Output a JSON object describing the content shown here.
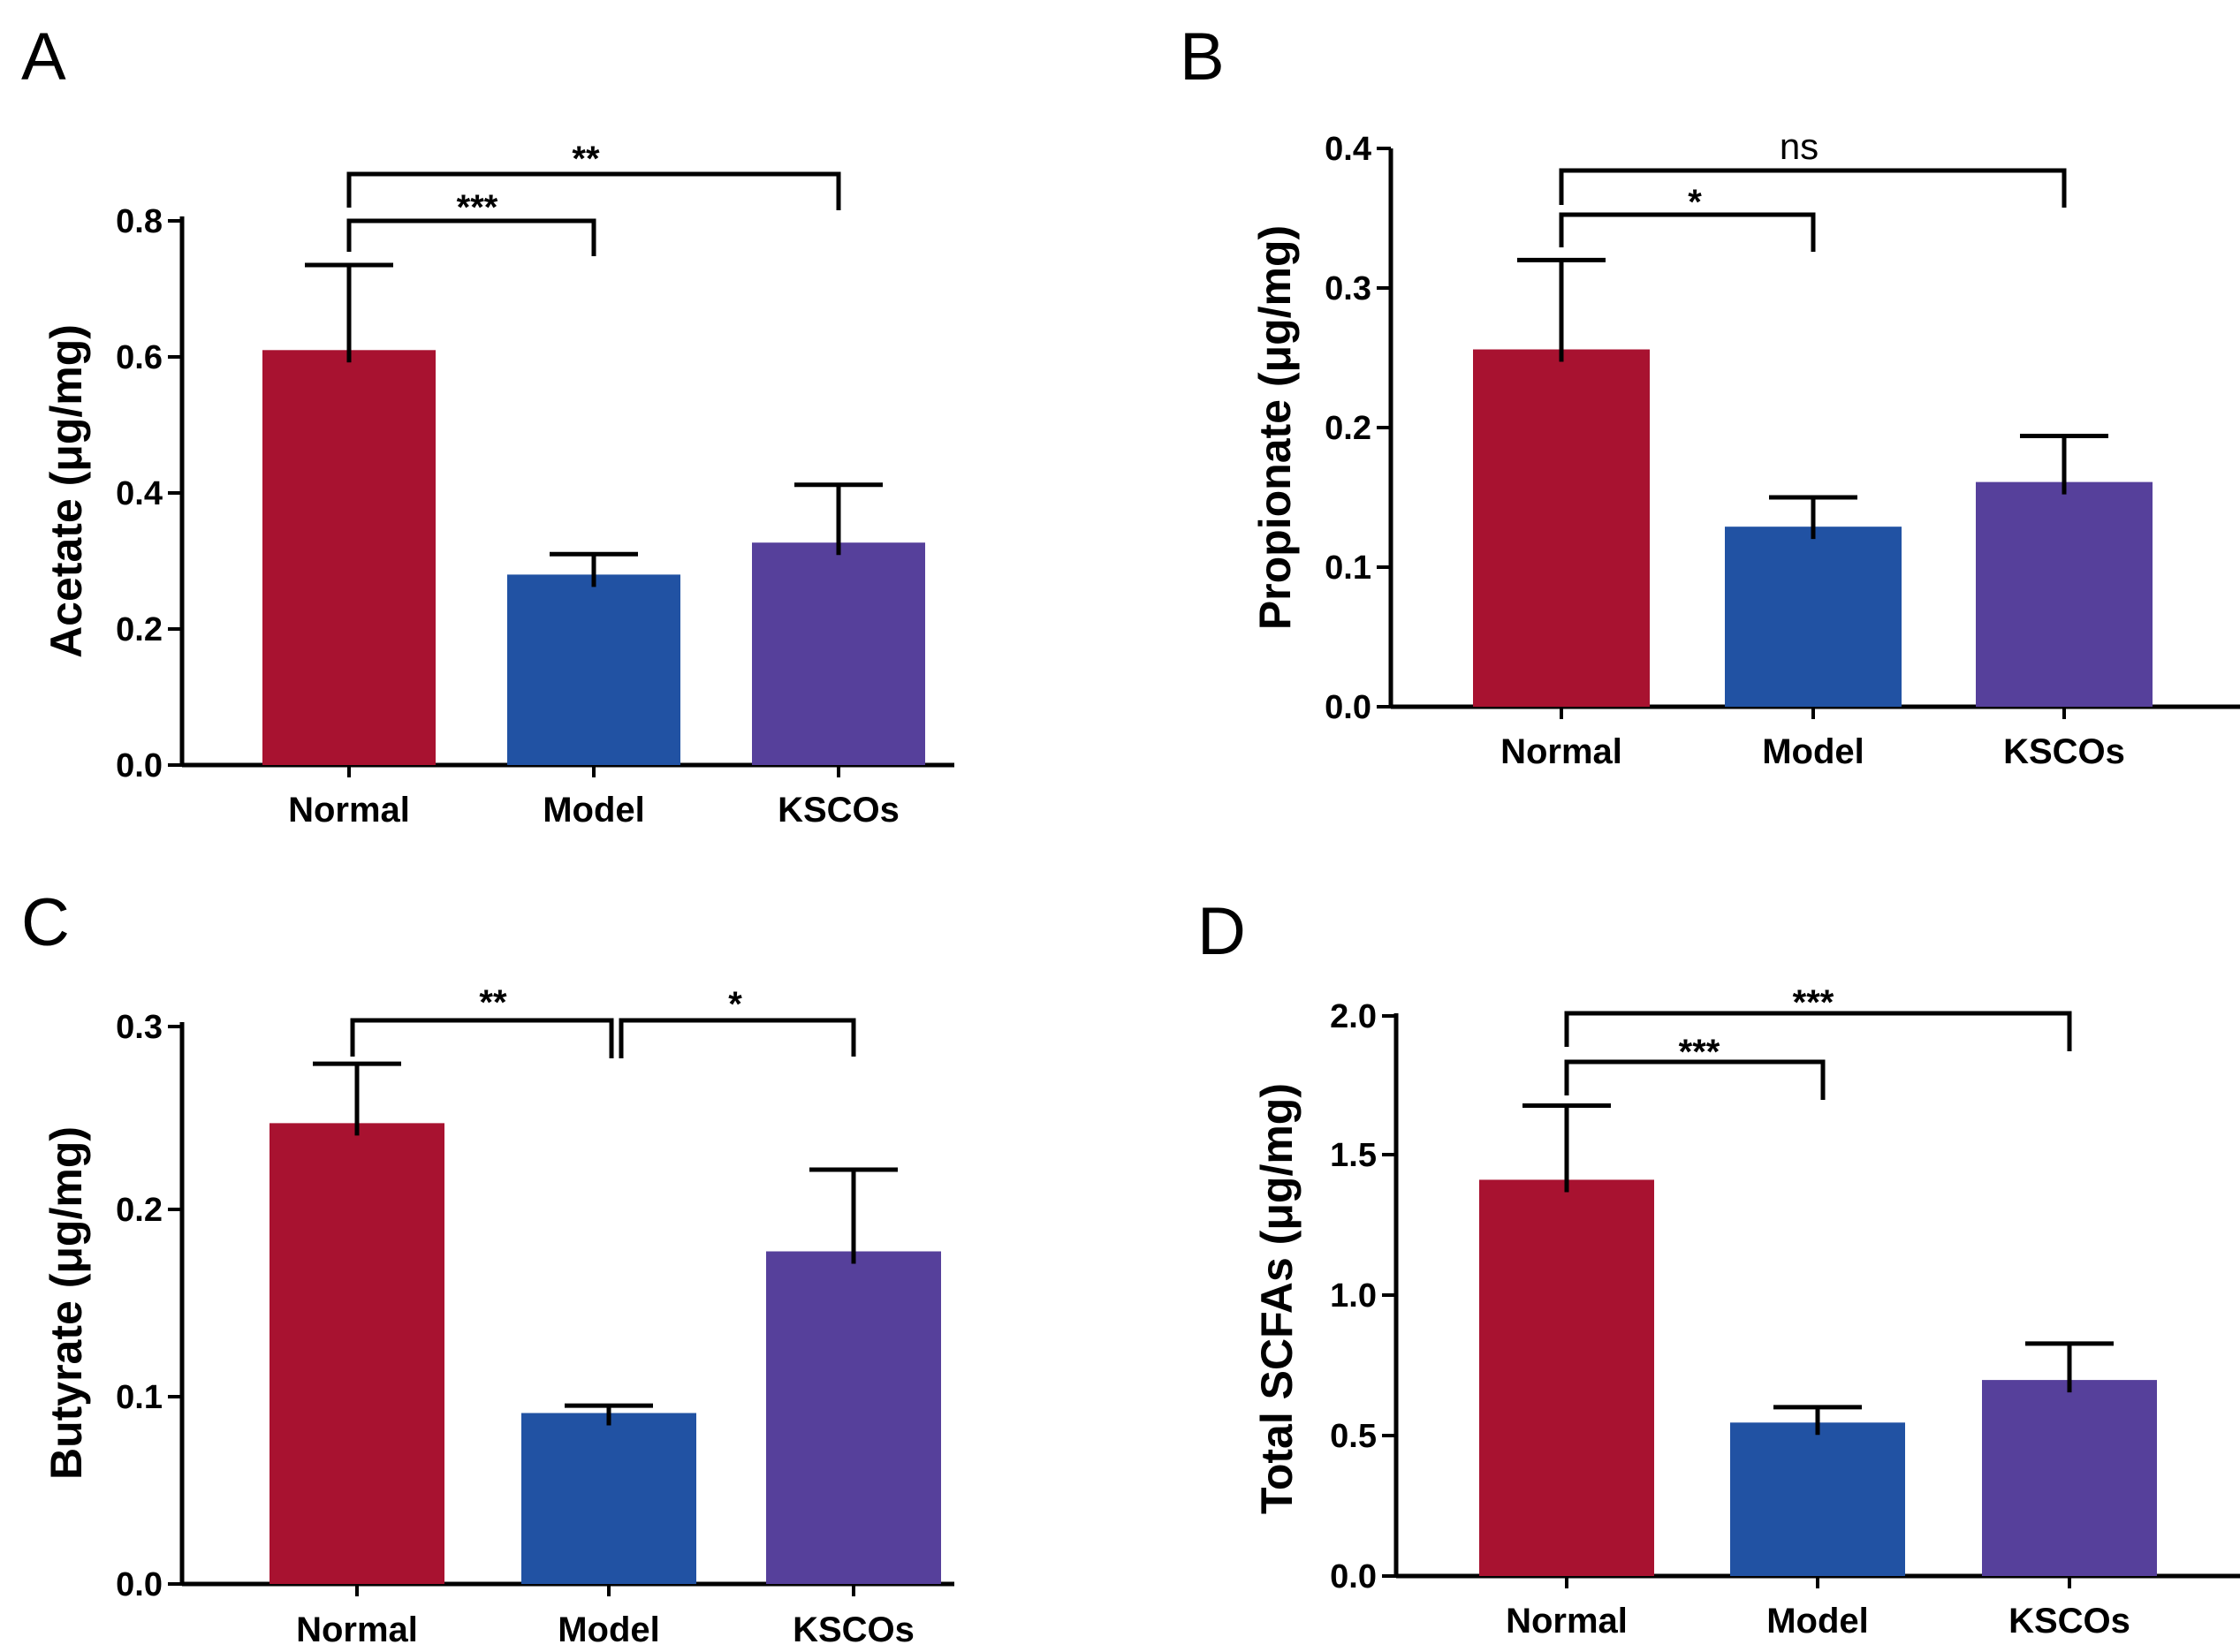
{
  "chart_data": [
    {
      "panel": "A",
      "type": "bar",
      "categories": [
        "Normal",
        "Model",
        "KSCOs"
      ],
      "values": [
        0.61,
        0.28,
        0.327
      ],
      "errors": [
        0.125,
        0.03,
        0.085
      ],
      "colors": [
        "#a81230",
        "#2152a3",
        "#56409b"
      ],
      "ylabel": "Acetate (μg/mg)",
      "ylim": [
        0,
        0.8
      ],
      "yticks": [
        "0.0",
        "0.2",
        "0.4",
        "0.6",
        "0.8"
      ],
      "comparisons": [
        {
          "from": 0,
          "to": 1,
          "label": "***"
        },
        {
          "from": 0,
          "to": 2,
          "label": "**"
        }
      ]
    },
    {
      "panel": "B",
      "type": "bar",
      "categories": [
        "Normal",
        "Model",
        "KSCOs"
      ],
      "values": [
        0.256,
        0.129,
        0.161
      ],
      "errors": [
        0.064,
        0.021,
        0.033
      ],
      "colors": [
        "#a81230",
        "#2152a3",
        "#56409b"
      ],
      "ylabel": "Propionate (μg/mg)",
      "ylim": [
        0,
        0.4
      ],
      "yticks": [
        "0.0",
        "0.1",
        "0.2",
        "0.3",
        "0.4"
      ],
      "comparisons": [
        {
          "from": 0,
          "to": 1,
          "label": "*"
        },
        {
          "from": 0,
          "to": 2,
          "label": "ns"
        }
      ]
    },
    {
      "panel": "C",
      "type": "bar",
      "categories": [
        "Normal",
        "Model",
        "KSCOs"
      ],
      "values": [
        0.248,
        0.092,
        0.179
      ],
      "errors": [
        0.032,
        0.004,
        0.044
      ],
      "colors": [
        "#a81230",
        "#2152a3",
        "#56409b"
      ],
      "ylabel": "Butyrate (μg/mg)",
      "ylim": [
        0,
        0.3
      ],
      "yticks": [
        "0.0",
        "0.1",
        "0.2",
        "0.3"
      ],
      "comparisons": [
        {
          "from": 0,
          "to": 1,
          "label": "**"
        },
        {
          "from": 1,
          "to": 2,
          "label": "*"
        }
      ]
    },
    {
      "panel": "D",
      "type": "bar",
      "categories": [
        "Normal",
        "Model",
        "KSCOs"
      ],
      "values": [
        1.415,
        0.548,
        0.7
      ],
      "errors": [
        0.265,
        0.055,
        0.13
      ],
      "colors": [
        "#a81230",
        "#2152a3",
        "#56409b"
      ],
      "ylabel": "Total SCFAs (μg/mg)",
      "ylim": [
        0,
        2.0
      ],
      "yticks": [
        "0.0",
        "0.5",
        "1.0",
        "1.5",
        "2.0"
      ],
      "comparisons": [
        {
          "from": 0,
          "to": 1,
          "label": "***"
        },
        {
          "from": 0,
          "to": 2,
          "label": "***"
        }
      ]
    }
  ]
}
